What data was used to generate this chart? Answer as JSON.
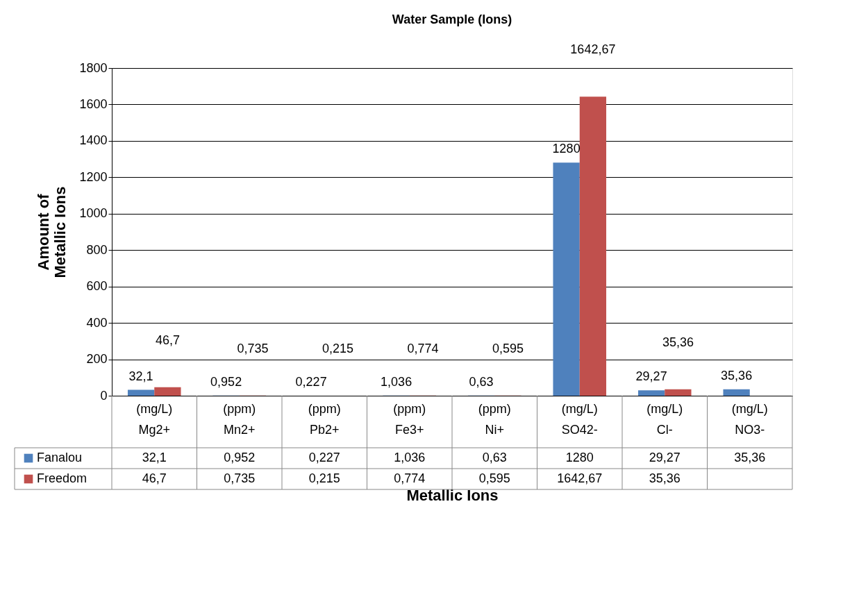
{
  "chart_data": {
    "type": "bar",
    "title": "Water Sample (Ions)",
    "xlabel": "Metallic Ions",
    "ylabel": "Amount of\nMetallic  Ions",
    "categories": [
      "(mg/L)\nMg2+",
      "(ppm)\nMn2+",
      "(ppm)\nPb2+",
      "(ppm)\nFe3+",
      "(ppm)\nNi+",
      "(mg/L)\nSO42-",
      "(mg/L)\nCl-",
      "(mg/L)\nNO3-"
    ],
    "series": [
      {
        "name": "Fanalou",
        "color": "#4f81bd",
        "values": [
          32.1,
          0.952,
          0.227,
          1.036,
          0.63,
          1280,
          29.27,
          35.36
        ],
        "value_labels": [
          "32,1",
          "0,952",
          "0,227",
          "1,036",
          "0,63",
          "1280",
          "29,27",
          "35,36"
        ]
      },
      {
        "name": "Freedom",
        "color": "#c0504d",
        "values": [
          46.7,
          0.735,
          0.215,
          0.774,
          0.595,
          1642.67,
          35.36,
          null
        ],
        "value_labels": [
          "46,7",
          "0,735",
          "0,215",
          "0,774",
          "0,595",
          "1642,67",
          "35,36",
          null
        ]
      }
    ],
    "ylim": [
      0,
      1800
    ],
    "yticks": [
      0,
      200,
      400,
      600,
      800,
      1000,
      1200,
      1400,
      1600,
      1800
    ],
    "grid": "y",
    "legend": "bottom left"
  }
}
